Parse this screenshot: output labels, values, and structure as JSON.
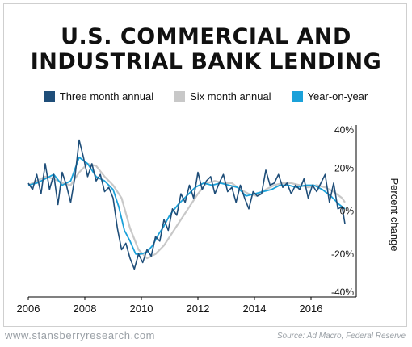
{
  "title_line1": "U.S. COMMERCIAL AND",
  "title_line2": "INDUSTRIAL BANK LENDING",
  "footer_left": "www.stansberryresearch.com",
  "footer_right": "Source: Ad Macro, Federal Reserve",
  "chart_data": {
    "type": "line",
    "ylabel": "Percent change",
    "ylim": [
      -40,
      40
    ],
    "yticks": [
      "40%",
      "20%",
      "0%",
      "-20%",
      "-40%"
    ],
    "xlim": [
      2006,
      2017.6
    ],
    "xticks": [
      "2006",
      "2008",
      "2010",
      "2012",
      "2014",
      "2016"
    ],
    "grid": false,
    "legend_position": "top-center",
    "series": [
      {
        "name": "Three month annual",
        "color": "#1f4e79",
        "x": [
          2006.0,
          2006.15,
          2006.3,
          2006.45,
          2006.6,
          2006.75,
          2006.9,
          2007.05,
          2007.2,
          2007.35,
          2007.5,
          2007.65,
          2007.8,
          2007.95,
          2008.1,
          2008.25,
          2008.4,
          2008.55,
          2008.7,
          2008.85,
          2009.0,
          2009.15,
          2009.3,
          2009.45,
          2009.6,
          2009.75,
          2009.9,
          2010.05,
          2010.2,
          2010.35,
          2010.5,
          2010.65,
          2010.8,
          2010.95,
          2011.1,
          2011.25,
          2011.4,
          2011.55,
          2011.7,
          2011.85,
          2012.0,
          2012.15,
          2012.3,
          2012.45,
          2012.6,
          2012.75,
          2012.9,
          2013.05,
          2013.2,
          2013.35,
          2013.5,
          2013.65,
          2013.8,
          2013.95,
          2014.1,
          2014.25,
          2014.4,
          2014.55,
          2014.7,
          2014.85,
          2015.0,
          2015.15,
          2015.3,
          2015.45,
          2015.6,
          2015.75,
          2015.9,
          2016.05,
          2016.2,
          2016.35,
          2016.5,
          2016.65,
          2016.8,
          2016.95,
          2017.1,
          2017.2
        ],
        "values": [
          13,
          10,
          17,
          8,
          22,
          10,
          17,
          3,
          18,
          12,
          4,
          16,
          33,
          25,
          16,
          22,
          14,
          17,
          9,
          11,
          6,
          -8,
          -18,
          -15,
          -22,
          -27,
          -20,
          -24,
          -18,
          -21,
          -12,
          -14,
          -4,
          -9,
          1,
          -2,
          8,
          4,
          12,
          6,
          18,
          10,
          14,
          16,
          8,
          13,
          17,
          9,
          11,
          4,
          12,
          6,
          1,
          9,
          7,
          8,
          19,
          12,
          13,
          17,
          11,
          13,
          8,
          12,
          10,
          15,
          6,
          12,
          9,
          13,
          17,
          4,
          13,
          1,
          2,
          -6
        ]
      },
      {
        "name": "Six month annual",
        "color": "#c8c8c8",
        "x": [
          2006.0,
          2006.3,
          2006.6,
          2006.9,
          2007.2,
          2007.5,
          2007.8,
          2008.1,
          2008.4,
          2008.7,
          2009.0,
          2009.3,
          2009.6,
          2009.9,
          2010.2,
          2010.5,
          2010.8,
          2011.1,
          2011.4,
          2011.7,
          2012.0,
          2012.3,
          2012.6,
          2012.9,
          2013.2,
          2013.5,
          2013.8,
          2014.1,
          2014.4,
          2014.7,
          2015.0,
          2015.3,
          2015.6,
          2015.9,
          2016.2,
          2016.5,
          2016.8,
          2017.1,
          2017.2
        ],
        "values": [
          12,
          14,
          16,
          15,
          13,
          12,
          18,
          22,
          21,
          16,
          12,
          6,
          -8,
          -18,
          -22,
          -20,
          -16,
          -10,
          -4,
          2,
          8,
          13,
          14,
          13,
          13,
          10,
          8,
          7,
          10,
          12,
          13,
          13,
          12,
          11,
          12,
          11,
          9,
          6,
          4
        ]
      },
      {
        "name": "Year-on-year",
        "color": "#1ba1d9",
        "x": [
          2006.0,
          2006.3,
          2006.6,
          2006.9,
          2007.2,
          2007.5,
          2007.8,
          2008.1,
          2008.4,
          2008.7,
          2009.0,
          2009.2,
          2009.4,
          2009.6,
          2009.8,
          2010.0,
          2010.2,
          2010.4,
          2010.6,
          2010.8,
          2011.0,
          2011.3,
          2011.6,
          2011.9,
          2012.2,
          2012.5,
          2012.8,
          2013.1,
          2013.4,
          2013.7,
          2014.0,
          2014.3,
          2014.6,
          2014.9,
          2015.2,
          2015.5,
          2015.8,
          2016.1,
          2016.4,
          2016.7,
          2017.0,
          2017.2
        ],
        "values": [
          12,
          13,
          15,
          17,
          12,
          14,
          25,
          22,
          16,
          14,
          10,
          2,
          -9,
          -14,
          -20,
          -20,
          -19,
          -16,
          -11,
          -7,
          -2,
          3,
          7,
          11,
          13,
          12,
          13,
          12,
          11,
          7,
          8,
          9,
          10,
          12,
          12,
          11,
          12,
          12,
          10,
          7,
          3,
          1
        ]
      }
    ]
  }
}
